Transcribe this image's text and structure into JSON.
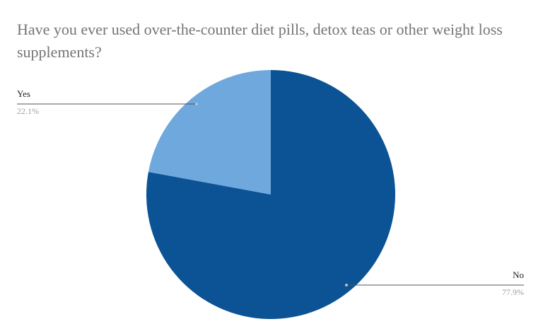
{
  "chart_data": {
    "type": "pie",
    "title": "Have you ever used over-the-counter diet pills, detox teas or other weight loss supplements?",
    "slices": [
      {
        "label": "Yes",
        "value": 22.1,
        "value_label": "22.1%",
        "color": "#6fa8dc"
      },
      {
        "label": "No",
        "value": 77.9,
        "value_label": "77.9%",
        "color": "#0b5394"
      }
    ],
    "start_angle": "12 o'clock, counter-clockwise",
    "legend": "none (labels beside slices)"
  }
}
